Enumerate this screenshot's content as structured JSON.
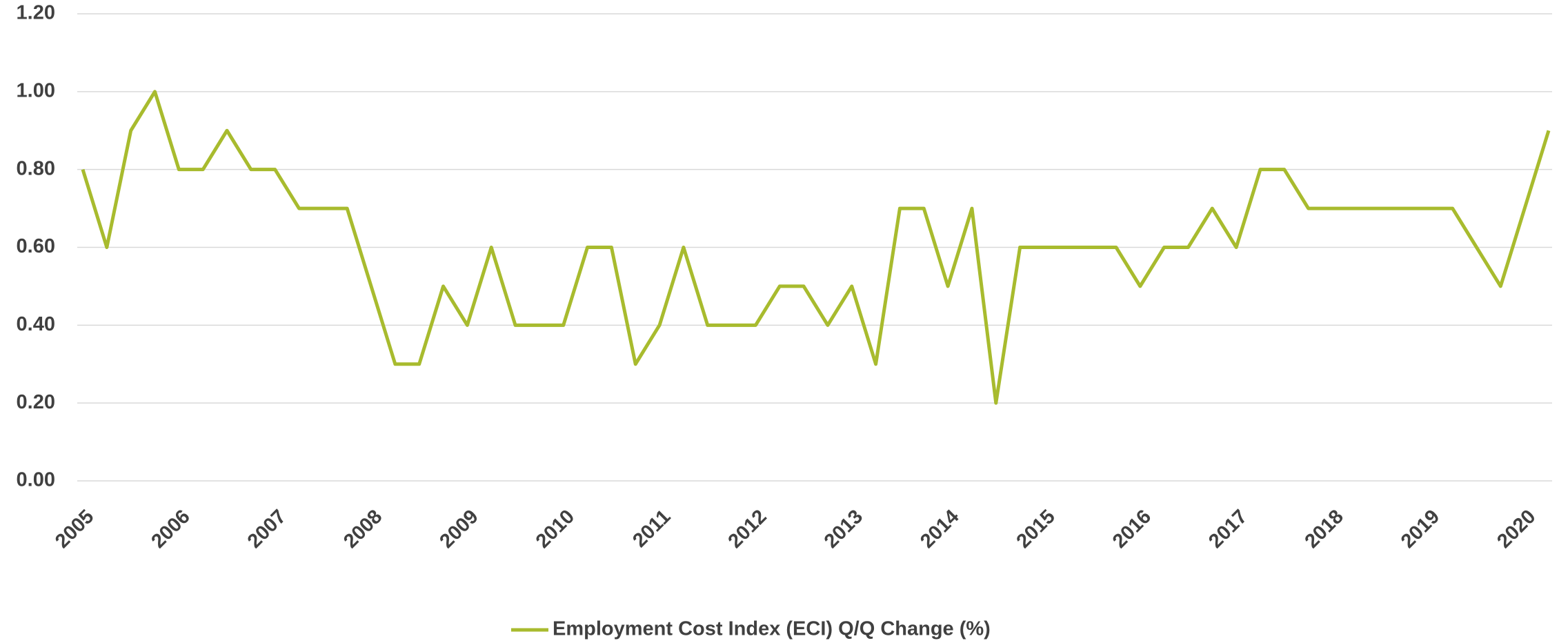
{
  "chart_data": {
    "type": "line",
    "categories": [
      "2005",
      null,
      null,
      null,
      "2006",
      null,
      null,
      null,
      "2007",
      null,
      null,
      null,
      "2008",
      null,
      null,
      null,
      "2009",
      null,
      null,
      null,
      "2010",
      null,
      null,
      null,
      "2011",
      null,
      null,
      null,
      "2012",
      null,
      null,
      null,
      "2013",
      null,
      null,
      null,
      "2014",
      null,
      null,
      null,
      "2015",
      null,
      null,
      null,
      "2016",
      null,
      null,
      null,
      "2017",
      null,
      null,
      null,
      "2018",
      null,
      null,
      null,
      "2019",
      null,
      null,
      null,
      "2020",
      null
    ],
    "series": [
      {
        "name": "Employment Cost Index (ECI) Q/Q Change (%)",
        "color": "#a8bb2e",
        "values": [
          0.8,
          0.6,
          0.9,
          1.0,
          0.8,
          0.8,
          0.9,
          0.8,
          0.8,
          0.7,
          0.7,
          0.7,
          0.5,
          0.3,
          0.3,
          0.5,
          0.4,
          0.6,
          0.4,
          0.4,
          0.4,
          0.6,
          0.6,
          0.3,
          0.4,
          0.6,
          0.4,
          0.4,
          0.4,
          0.5,
          0.5,
          0.4,
          0.5,
          0.3,
          0.7,
          0.7,
          0.5,
          0.7,
          0.2,
          0.6,
          0.6,
          0.6,
          0.6,
          0.6,
          0.5,
          0.6,
          0.6,
          0.7,
          0.6,
          0.8,
          0.8,
          0.7,
          0.7,
          0.7,
          0.7,
          0.7,
          0.7,
          0.7,
          0.6,
          0.5,
          0.7,
          0.9
        ]
      }
    ],
    "ylim": [
      0,
      1.2
    ],
    "yticks": [
      {
        "value": 0,
        "label": "0.00"
      },
      {
        "value": 0.2,
        "label": "0.20"
      },
      {
        "value": 0.4,
        "label": "0.40"
      },
      {
        "value": 0.6,
        "label": "0.60"
      },
      {
        "value": 0.8,
        "label": "0.80"
      },
      {
        "value": 1.0,
        "label": "1.00"
      },
      {
        "value": 1.2,
        "label": "1.20"
      }
    ],
    "grid": true,
    "legend": "bottom"
  }
}
